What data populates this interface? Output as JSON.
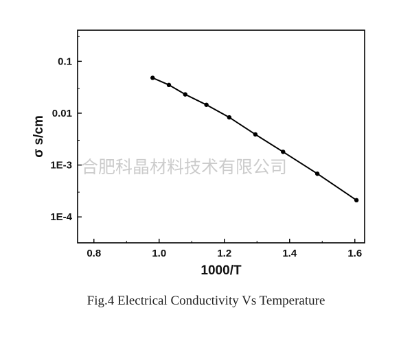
{
  "caption": "Fig.4 Electrical Conductivity Vs Temperature",
  "watermark": "合肥科晶材料技术有限公司",
  "chart_data": {
    "type": "line",
    "title": "",
    "xlabel": "1000/T",
    "ylabel": "σ  s/cm",
    "xlim": [
      0.75,
      1.63
    ],
    "ylim_log10": [
      -4.5,
      -0.4
    ],
    "y_scale": "log",
    "x_ticks": [
      0.8,
      1.0,
      1.2,
      1.4,
      1.6
    ],
    "x_tick_labels": [
      "0.8",
      "1.0",
      "1.2",
      "1.4",
      "1.6"
    ],
    "y_ticks": [
      0.1,
      0.01,
      0.001,
      0.0001
    ],
    "y_tick_labels": [
      "0.1",
      "0.01",
      "1E-3",
      "1E-4"
    ],
    "grid": false,
    "series": [
      {
        "color": "#000000",
        "x": [
          0.98,
          1.03,
          1.08,
          1.145,
          1.215,
          1.295,
          1.38,
          1.485,
          1.605
        ],
        "y": [
          0.048,
          0.035,
          0.023,
          0.0145,
          0.0083,
          0.0039,
          0.0018,
          0.00068,
          0.00021
        ]
      }
    ]
  }
}
